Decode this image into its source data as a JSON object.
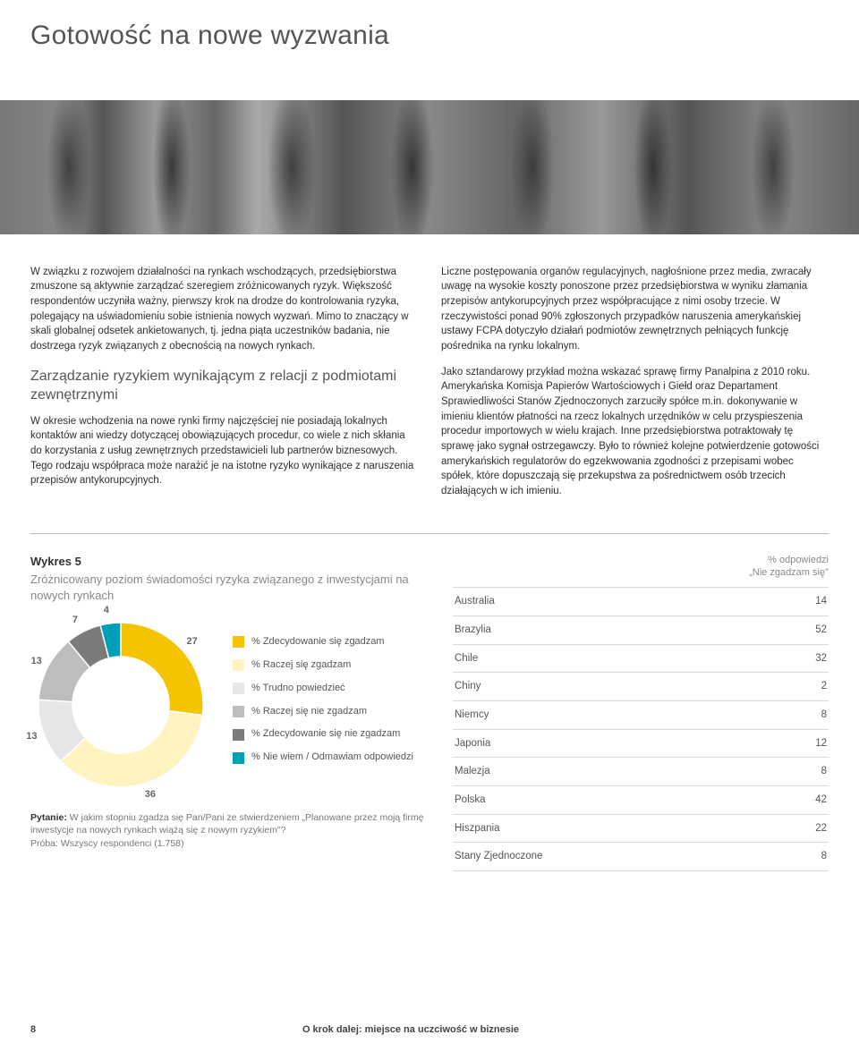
{
  "page_title": "Gotowość na nowe wyzwania",
  "left_col": {
    "p1": "W związku z rozwojem działalności na rynkach wschodzących, przedsiębiorstwa zmuszone są aktywnie zarządzać szeregiem zróżnicowanych ryzyk. Większość respondentów uczyniła ważny, pierwszy krok na drodze do kontrolowania ryzyka, polegający na uświadomieniu sobie istnienia nowych wyzwań. Mimo to znaczący w skali globalnej odsetek ankietowanych, tj. jedna piąta uczestników badania, nie dostrzega ryzyk związanych z obecnością na nowych rynkach.",
    "sub": "Zarządzanie ryzykiem wynikającym z relacji z podmiotami zewnętrznymi",
    "p2": "W okresie wchodzenia na nowe rynki firmy najczęściej nie posiadają lokalnych kontaktów ani wiedzy dotyczącej obowiązujących procedur, co wiele z nich skłania do korzystania z usług zewnętrznych przedstawicieli lub partnerów biznesowych. Tego rodzaju współpraca może narażić je na istotne ryzyko wynikające z naruszenia przepisów antykorupcyjnych."
  },
  "right_col": {
    "p1": "Liczne postępowania organów regulacyjnych, nagłośnione przez media, zwracały uwagę na wysokie koszty ponoszone przez przedsiębiorstwa w wyniku złamania przepisów antykorupcyjnych przez współpracujące z nimi osoby trzecie. W rzeczywistości ponad 90% zgłoszonych przypadków naruszenia amerykańskiej ustawy FCPA dotyczyło działań podmiotów zewnętrznych pełniących funkcję pośrednika na rynku lokalnym.",
    "p2": "Jako sztandarowy przykład można wskazać sprawę firmy Panalpina z 2010 roku. Amerykańska Komisja Papierów Wartościowych i Giełd oraz Departament Sprawiedliwości Stanów Zjednoczonych zarzuciły spółce m.in. dokonywanie w imieniu klientów płatności na rzecz lokalnych urzędników w celu przyspieszenia procedur importowych w wielu krajach. Inne przedsiębiorstwa potraktowały tę sprawę jako sygnał ostrzegawczy. Było to również kolejne potwierdzenie gotowości amerykańskich regulatorów do egzekwowania zgodności z przepisami wobec spółek, które dopuszczają się przekupstwa za pośrednictwem osób trzecich działających w ich imieniu."
  },
  "chart": {
    "title": "Wykres 5",
    "subtitle": "Zróżnicowany poziom świadomości ryzyka związanego z inwestycjami na nowych rynkach",
    "type": "donut",
    "inner_radius": 54,
    "outer_radius": 92,
    "background_color": "#ffffff",
    "slices": [
      {
        "label": "% Zdecydowanie się zgadzam",
        "value": 27,
        "color": "#f4c400",
        "show_label": "27"
      },
      {
        "label": "% Raczej się zgadzam",
        "value": 36,
        "color": "#fff3c2",
        "show_label": "36"
      },
      {
        "label": "% Trudno powiedzieć",
        "value": 13,
        "color": "#e6e6e6",
        "show_label": "13"
      },
      {
        "label": "% Raczej się nie zgadzam",
        "value": 13,
        "color": "#bdbdbd",
        "show_label": "13"
      },
      {
        "label": "% Zdecydowanie się nie zgadzam",
        "value": 7,
        "color": "#7b7b7b",
        "show_label": "7"
      },
      {
        "label": "% Nie wiem / Odmawiam odpowiedzi",
        "value": 4,
        "color": "#009fb8",
        "show_label": "4"
      }
    ],
    "label_font_size": 11,
    "label_color": "#666666",
    "legend_font_size": 11,
    "question_label": "Pytanie:",
    "question": "W jakim stopniu zgadza się Pan/Pani ze stwierdzeniem „Planowane przez moją firmę inwestycje na nowych rynkach wiążą się z nowym ryzykiem\"?",
    "sample": "Próba: Wszyscy respondenci (1.758)"
  },
  "table": {
    "caption_line1": "% odpowiedzi",
    "caption_line2": "„Nie zgadzam się\"",
    "rows": [
      {
        "country": "Australia",
        "value": 14
      },
      {
        "country": "Brazylia",
        "value": 52
      },
      {
        "country": "Chile",
        "value": 32
      },
      {
        "country": "Chiny",
        "value": 2
      },
      {
        "country": "Niemcy",
        "value": 8
      },
      {
        "country": "Japonia",
        "value": 12
      },
      {
        "country": "Malezja",
        "value": 8
      },
      {
        "country": "Polska",
        "value": 42
      },
      {
        "country": "Hiszpania",
        "value": 22
      },
      {
        "country": "Stany Zjednoczone",
        "value": 8
      }
    ],
    "border_color": "#d9d9d9",
    "row_font_size": 11.5,
    "text_color": "#555555"
  },
  "footer": {
    "page": "8",
    "title": "O krok dalej: miejsce na uczciwość w biznesie"
  }
}
